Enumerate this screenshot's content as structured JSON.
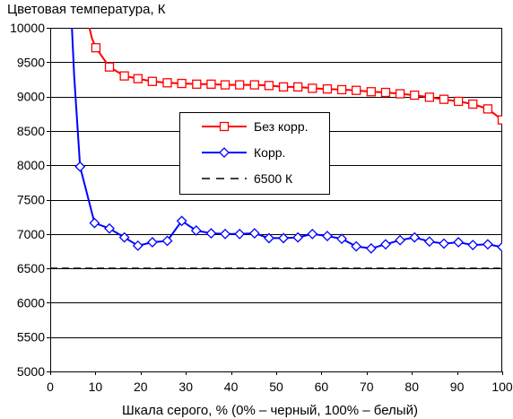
{
  "chart_data": {
    "type": "line",
    "title": "",
    "ylabel": "Цветовая температура, К",
    "xlabel": "Шкала серого, % (0% – черный, 100% – белый)",
    "xlim": [
      0,
      100
    ],
    "ylim": [
      5000,
      10000
    ],
    "x_ticks": [
      0,
      10,
      20,
      30,
      40,
      50,
      60,
      70,
      80,
      90,
      100
    ],
    "y_ticks": [
      5000,
      5500,
      6000,
      6500,
      7000,
      7500,
      8000,
      8500,
      9000,
      9500,
      10000
    ],
    "grid": "horizontal",
    "legend_position": "center",
    "series": [
      {
        "name": "Без корр.",
        "color": "#ff0000",
        "marker": "square",
        "curve_start": [
          [
            8.7,
            10000
          ],
          [
            9.2,
            9850
          ]
        ],
        "x": [
          10.1,
          13.1,
          16.4,
          19.4,
          22.6,
          25.9,
          29.1,
          32.4,
          35.6,
          38.7,
          41.9,
          45.2,
          48.4,
          51.6,
          54.8,
          58.0,
          61.3,
          64.5,
          67.7,
          71.0,
          74.2,
          77.4,
          80.6,
          83.9,
          87.1,
          90.3,
          93.5,
          96.8,
          100.0
        ],
        "y": [
          9710,
          9430,
          9300,
          9260,
          9220,
          9200,
          9190,
          9180,
          9180,
          9170,
          9170,
          9170,
          9160,
          9140,
          9140,
          9120,
          9110,
          9100,
          9090,
          9070,
          9060,
          9040,
          9020,
          8990,
          8960,
          8930,
          8890,
          8820,
          8660
        ]
      },
      {
        "name": "Корр.",
        "color": "#0000ff",
        "marker": "diamond",
        "curve_start": [
          [
            4.8,
            10000
          ],
          [
            5.3,
            9300
          ]
        ],
        "x": [
          6.6,
          9.8,
          13.1,
          16.4,
          19.4,
          22.6,
          25.9,
          29.1,
          32.3,
          35.6,
          38.7,
          41.9,
          45.2,
          48.4,
          51.6,
          54.8,
          58.0,
          61.3,
          64.5,
          67.7,
          71.0,
          74.2,
          77.4,
          80.6,
          83.9,
          87.1,
          90.3,
          93.5,
          96.8,
          100.0
        ],
        "y": [
          7980,
          7160,
          7080,
          6950,
          6830,
          6880,
          6900,
          7190,
          7050,
          7010,
          7000,
          7000,
          7010,
          6940,
          6940,
          6950,
          7000,
          6970,
          6930,
          6820,
          6790,
          6850,
          6910,
          6950,
          6890,
          6860,
          6880,
          6840,
          6850,
          6810
        ]
      },
      {
        "name": "6500 К",
        "color": "#000000",
        "style": "dashed",
        "x": [
          0,
          100
        ],
        "y": [
          6500,
          6500
        ]
      }
    ]
  }
}
